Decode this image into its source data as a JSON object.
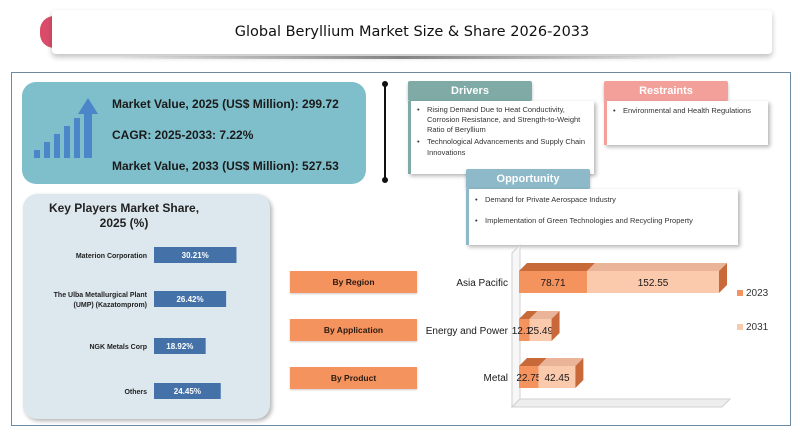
{
  "title": "Global Beryllium Market Size & Share 2026-2033",
  "market": {
    "value_2025": "Market Value, 2025 (US$ Million): 299.72",
    "cagr": "CAGR: 2025-2033: 7.22%",
    "value_2033": "Market Value, 2033 (US$ Million): 527.53"
  },
  "factors": {
    "drivers_label": "Drivers",
    "drivers": [
      "Rising Demand Due to Heat Conductivity, Corrosion Resistance, and Strength-to-Weight Ratio of Beryllium",
      "Technological Advancements and Supply Chain Innovations"
    ],
    "restraints_label": "Restraints",
    "restraints": [
      "Environmental and Health Regulations"
    ],
    "opportunity_label": "Opportunity",
    "opportunities": [
      "Demand for Private Aerospace Industry",
      "Implementation of Green Technologies and Recycling Property"
    ],
    "bullet": "•"
  },
  "segments": {
    "by_region": "By Region",
    "by_application": "By Application",
    "by_product": "By Product"
  },
  "colors": {
    "bar_blue": "#4472a8",
    "bar_2023": "#f4935e",
    "bar_2031": "#fbc9ac",
    "panel_teal": "#7fbfcb",
    "panel_grey": "#dde7ee"
  },
  "chart_data": [
    {
      "type": "bar",
      "orientation": "horizontal",
      "title": "Key Players Market Share, 2025 (%)",
      "categories": [
        "Materion Corporation",
        "The Ulba Metallurgical Plant (UMP) (Kazatomprom)",
        "NGK Metals Corp",
        "Others"
      ],
      "category_lines": [
        [
          "Materion Corporation"
        ],
        [
          "The Ulba Metallurgical Plant",
          "(UMP) (Kazatomprom)"
        ],
        [
          "NGK Metals Corp"
        ],
        [
          "Others"
        ]
      ],
      "values": [
        30.21,
        26.42,
        18.92,
        24.45
      ],
      "value_labels": [
        "30.21%",
        "26.42%",
        "18.92%",
        "24.45%"
      ],
      "xlim": [
        0,
        100
      ]
    },
    {
      "type": "bar",
      "orientation": "horizontal",
      "stacked": true,
      "categories": [
        "Asia Pacific",
        "Energy and Power",
        "Metal"
      ],
      "series": [
        {
          "name": "2023",
          "values": [
            78.71,
            12.15,
            22.75
          ],
          "labels": [
            "78.71",
            "12.15",
            "22.75"
          ]
        },
        {
          "name": "2031",
          "values": [
            152.55,
            25.49,
            42.45
          ],
          "labels": [
            "152.55",
            "25.49",
            "42.45"
          ]
        }
      ],
      "legend": "right",
      "grid": false
    }
  ]
}
